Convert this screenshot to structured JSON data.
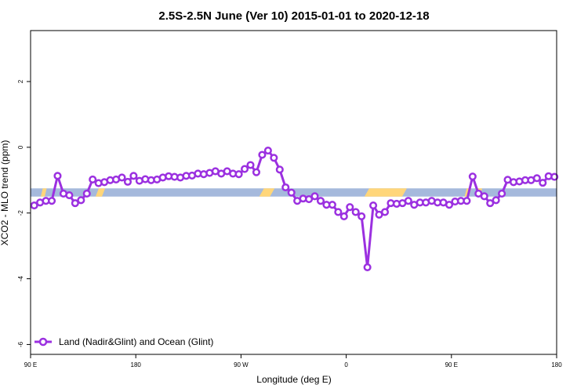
{
  "chart_data": {
    "type": "line",
    "title": "2.5S-2.5N June (Ver 10)   2015-01-01 to 2020-12-18",
    "xlabel": "Longitude (deg E)",
    "ylabel": "XCO2 - MLO trend (ppm)",
    "xlim": [
      90,
      450
    ],
    "ylim": [
      -6.3,
      3.55
    ],
    "x_ticks": [
      {
        "value": 90,
        "label": "90 E"
      },
      {
        "value": 162,
        "label": "180"
      },
      {
        "value": 234,
        "label": "90 W"
      },
      {
        "value": 306,
        "label": "0"
      },
      {
        "value": 378,
        "label": "90 E"
      },
      {
        "value": 450,
        "label": "180"
      }
    ],
    "y_ticks": [
      {
        "value": 2,
        "label": "2"
      },
      {
        "value": 0,
        "label": "0"
      },
      {
        "value": -2,
        "label": "-2"
      },
      {
        "value": -4,
        "label": "-4"
      },
      {
        "value": -6,
        "label": "-6"
      }
    ],
    "grid": false,
    "legend": {
      "position": "bottom-left",
      "entries": [
        "Land (Nadir&Glint) and Ocean (Glint)"
      ]
    },
    "surface_band": {
      "y_range": [
        -1.5,
        -1.25
      ],
      "ocean_color": "#a5b9dc",
      "land_color": "#ffd67a",
      "land_segments": [
        [
          97,
          101
        ],
        [
          134.5,
          141
        ],
        [
          246.5,
          257
        ],
        [
          318.5,
          347.5
        ],
        [
          387,
          391.5
        ],
        [
          395,
          399
        ]
      ]
    },
    "series": [
      {
        "name": "Land (Nadir&Glint) and Ocean (Glint)",
        "color": "#9b30e0",
        "x": [
          92.5,
          96.5,
          100.5,
          104.5,
          108.5,
          112.5,
          116.5,
          120.5,
          124.5,
          128.5,
          132.5,
          136.5,
          140.5,
          144.5,
          148.5,
          152.5,
          156.5,
          160.5,
          164.5,
          168.5,
          172.5,
          176.5,
          180.5,
          184.5,
          188.5,
          192.5,
          196.5,
          200.5,
          204.5,
          208.5,
          212.5,
          216.5,
          220.5,
          224.5,
          228.5,
          232.5,
          236.5,
          240.5,
          244.5,
          248.5,
          252.5,
          256.5,
          260.5,
          264.5,
          268.5,
          272.5,
          276.5,
          280.5,
          284.5,
          288.5,
          292.5,
          296.5,
          300.5,
          304.5,
          308.5,
          312.5,
          316.5,
          320.5,
          324.5,
          328.5,
          332.5,
          336.5,
          340.5,
          344.5,
          348.5,
          352.5,
          356.5,
          360.5,
          364.5,
          368.5,
          372.5,
          376.5,
          380.5,
          384.5,
          388.5,
          392.5,
          396.5,
          400.5,
          404.5,
          408.5,
          412.5,
          416.5,
          420.5,
          424.5,
          428.5,
          432.5,
          436.5,
          440.5,
          444.5,
          448.5
        ],
        "y": [
          -1.77,
          -1.68,
          -1.63,
          -1.63,
          -0.87,
          -1.41,
          -1.46,
          -1.7,
          -1.61,
          -1.41,
          -0.98,
          -1.09,
          -1.06,
          -1.0,
          -0.98,
          -0.92,
          -1.05,
          -0.87,
          -1.02,
          -0.97,
          -1.0,
          -0.98,
          -0.92,
          -0.88,
          -0.9,
          -0.92,
          -0.87,
          -0.86,
          -0.8,
          -0.82,
          -0.78,
          -0.73,
          -0.8,
          -0.73,
          -0.8,
          -0.82,
          -0.66,
          -0.54,
          -0.76,
          -0.23,
          -0.1,
          -0.32,
          -0.68,
          -1.22,
          -1.38,
          -1.63,
          -1.56,
          -1.58,
          -1.49,
          -1.63,
          -1.75,
          -1.75,
          -1.97,
          -2.1,
          -1.82,
          -1.97,
          -2.1,
          -3.65,
          -1.77,
          -2.05,
          -1.97,
          -1.7,
          -1.72,
          -1.7,
          -1.63,
          -1.75,
          -1.68,
          -1.68,
          -1.63,
          -1.68,
          -1.68,
          -1.75,
          -1.65,
          -1.63,
          -1.63,
          -0.89,
          -1.41,
          -1.49,
          -1.7,
          -1.61,
          -1.41,
          -0.99,
          -1.06,
          -1.04,
          -1.0,
          -1.0,
          -0.94,
          -1.08,
          -0.88,
          -0.9
        ]
      }
    ]
  }
}
